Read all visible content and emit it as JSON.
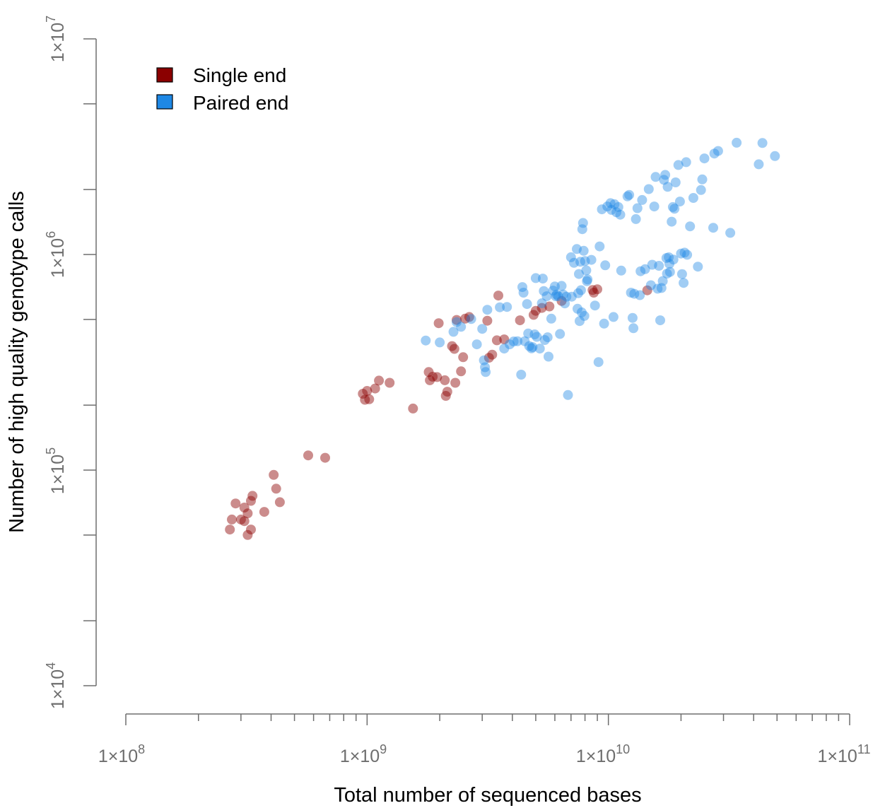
{
  "colors": {
    "single_end": "#8b0000",
    "paired_end": "#1e88e5",
    "axis": "#6e6e6e"
  },
  "chart_data": {
    "type": "scatter",
    "title": "",
    "xlabel": "Total number of sequenced bases",
    "ylabel": "Number of high quality genotype calls",
    "xscale": "log",
    "yscale": "log",
    "xlim": [
      100000000,
      100000000000
    ],
    "ylim": [
      10000,
      10000000
    ],
    "x_tick_labels": [
      {
        "base": "1×10",
        "exp": "8"
      },
      {
        "base": "1×10",
        "exp": "9"
      },
      {
        "base": "1×10",
        "exp": "10"
      },
      {
        "base": "1×10",
        "exp": "11"
      }
    ],
    "y_tick_labels": [
      {
        "base": "1×10",
        "exp": "4"
      },
      {
        "base": "1×10",
        "exp": "5"
      },
      {
        "base": "1×10",
        "exp": "6"
      },
      {
        "base": "1×10",
        "exp": "7"
      }
    ],
    "grid": false,
    "legend_position": "top-left",
    "legend": [
      "Single end",
      "Paired end"
    ],
    "series": [
      {
        "name": "Single end",
        "points": [
          [
            270000000.0,
            53000
          ],
          [
            275000000.0,
            59000
          ],
          [
            285000000.0,
            70000
          ],
          [
            300000000.0,
            59000
          ],
          [
            310000000.0,
            67000
          ],
          [
            310000000.0,
            58000
          ],
          [
            320000000.0,
            63000
          ],
          [
            320000000.0,
            50000
          ],
          [
            330000000.0,
            53000
          ],
          [
            330000000.0,
            72000
          ],
          [
            335000000.0,
            76000
          ],
          [
            375000000.0,
            64000
          ],
          [
            410000000.0,
            95000
          ],
          [
            420000000.0,
            82000
          ],
          [
            435000000.0,
            71000
          ],
          [
            570000000.0,
            117000
          ],
          [
            670000000.0,
            114000
          ],
          [
            960000000.0,
            226000
          ],
          [
            980000000.0,
            212000
          ],
          [
            1000000000.0,
            233000
          ],
          [
            1020000000.0,
            213000
          ],
          [
            1080000000.0,
            239000
          ],
          [
            1120000000.0,
            260000
          ],
          [
            1240000000.0,
            254000
          ],
          [
            1550000000.0,
            193000
          ],
          [
            1800000000.0,
            285000
          ],
          [
            1820000000.0,
            261000
          ],
          [
            1870000000.0,
            271000
          ],
          [
            1950000000.0,
            270000
          ],
          [
            1980000000.0,
            480000
          ],
          [
            2100000000.0,
            261000
          ],
          [
            2120000000.0,
            221000
          ],
          [
            2150000000.0,
            231000
          ],
          [
            2250000000.0,
            376000
          ],
          [
            2300000000.0,
            365000
          ],
          [
            2320000000.0,
            254000
          ],
          [
            2350000000.0,
            497000
          ],
          [
            2450000000.0,
            287000
          ],
          [
            2500000000.0,
            334000
          ],
          [
            2550000000.0,
            504000
          ],
          [
            2650000000.0,
            513000
          ],
          [
            3150000000.0,
            493000
          ],
          [
            3200000000.0,
            332000
          ],
          [
            3300000000.0,
            343000
          ],
          [
            3450000000.0,
            400000
          ],
          [
            3500000000.0,
            645000
          ],
          [
            3700000000.0,
            404000
          ],
          [
            4300000000.0,
            495000
          ],
          [
            4900000000.0,
            525000
          ],
          [
            5000000000.0,
            548000
          ],
          [
            5300000000.0,
            565000
          ],
          [
            5700000000.0,
            574000
          ],
          [
            6400000000.0,
            609000
          ],
          [
            8600000000.0,
            684000
          ],
          [
            8700000000.0,
            665000
          ],
          [
            9000000000.0,
            690000
          ],
          [
            14500000000.0,
            682000
          ]
        ]
      },
      {
        "name": "Paired end",
        "points": [
          [
            1750000000.0,
            399000
          ],
          [
            2000000000.0,
            391000
          ],
          [
            2280000000.0,
            438000
          ],
          [
            2350000000.0,
            486000
          ],
          [
            2450000000.0,
            462000
          ],
          [
            2700000000.0,
            502000
          ],
          [
            2850000000.0,
            383000
          ],
          [
            3000000000.0,
            452000
          ],
          [
            3050000000.0,
            323000
          ],
          [
            3080000000.0,
            300000
          ],
          [
            3100000000.0,
            285000
          ],
          [
            3150000000.0,
            554000
          ],
          [
            3550000000.0,
            569000
          ],
          [
            3700000000.0,
            366000
          ],
          [
            3800000000.0,
            571000
          ],
          [
            3900000000.0,
            383000
          ],
          [
            4050000000.0,
            395000
          ],
          [
            4200000000.0,
            396000
          ],
          [
            4350000000.0,
            277000
          ],
          [
            4400000000.0,
            706000
          ],
          [
            4450000000.0,
            665000
          ],
          [
            4500000000.0,
            396000
          ],
          [
            4600000000.0,
            589000
          ],
          [
            4650000000.0,
            430000
          ],
          [
            4700000000.0,
            376000
          ],
          [
            4800000000.0,
            367000
          ],
          [
            4850000000.0,
            372000
          ],
          [
            4950000000.0,
            426000
          ],
          [
            5000000000.0,
            777000
          ],
          [
            5050000000.0,
            415000
          ],
          [
            5200000000.0,
            366000
          ],
          [
            5300000000.0,
            594000
          ],
          [
            5350000000.0,
            773000
          ],
          [
            5400000000.0,
            677000
          ],
          [
            5450000000.0,
            401000
          ],
          [
            5550000000.0,
            640000
          ],
          [
            5600000000.0,
            413000
          ],
          [
            5650000000.0,
            336000
          ],
          [
            5800000000.0,
            504000
          ],
          [
            5900000000.0,
            680000
          ],
          [
            6000000000.0,
            711000
          ],
          [
            6050000000.0,
            640000
          ],
          [
            6100000000.0,
            652000
          ],
          [
            6200000000.0,
            640000
          ],
          [
            6300000000.0,
            428000
          ],
          [
            6400000000.0,
            715000
          ],
          [
            6500000000.0,
            652000
          ],
          [
            6600000000.0,
            593000
          ],
          [
            6700000000.0,
            637000
          ],
          [
            6800000000.0,
            223000
          ],
          [
            7000000000.0,
            971000
          ],
          [
            7050000000.0,
            637000
          ],
          [
            7200000000.0,
            915000
          ],
          [
            7400000000.0,
            1060000
          ],
          [
            7450000000.0,
            560000
          ],
          [
            7500000000.0,
            661000
          ],
          [
            7550000000.0,
            812000
          ],
          [
            7600000000.0,
            491000
          ],
          [
            7650000000.0,
            925000
          ],
          [
            7700000000.0,
            683000
          ],
          [
            7750000000.0,
            539000
          ],
          [
            7800000000.0,
            1310000
          ],
          [
            7850000000.0,
            1400000
          ],
          [
            7900000000.0,
            1040000
          ],
          [
            7950000000.0,
            519000
          ],
          [
            8000000000.0,
            932000
          ],
          [
            8100000000.0,
            844000
          ],
          [
            8150000000.0,
            752000
          ],
          [
            8200000000.0,
            766000
          ],
          [
            8500000000.0,
            944000
          ],
          [
            8800000000.0,
            580000
          ],
          [
            9100000000.0,
            317000
          ],
          [
            9200000000.0,
            1090000
          ],
          [
            9400000000.0,
            1620000
          ],
          [
            9600000000.0,
            478000
          ],
          [
            9700000000.0,
            891000
          ],
          [
            9900000000.0,
            1670000
          ],
          [
            10200000000.0,
            1730000
          ],
          [
            10300000000.0,
            1610000
          ],
          [
            10500000000.0,
            513000
          ],
          [
            10600000000.0,
            1710000
          ],
          [
            10800000000.0,
            1570000
          ],
          [
            11000000000.0,
            1660000
          ],
          [
            11200000000.0,
            1530000
          ],
          [
            11300000000.0,
            842000
          ],
          [
            12000000000.0,
            1860000
          ],
          [
            12200000000.0,
            1890000
          ],
          [
            12400000000.0,
            665000
          ],
          [
            12600000000.0,
            508000
          ],
          [
            12700000000.0,
            455000
          ],
          [
            12800000000.0,
            657000
          ],
          [
            13000000000.0,
            1460000
          ],
          [
            13200000000.0,
            1640000
          ],
          [
            13500000000.0,
            648000
          ],
          [
            13600000000.0,
            836000
          ],
          [
            13800000000.0,
            1790000
          ],
          [
            14200000000.0,
            855000
          ],
          [
            14700000000.0,
            2010000
          ],
          [
            15000000000.0,
            720000
          ],
          [
            15200000000.0,
            896000
          ],
          [
            15500000000.0,
            1670000
          ],
          [
            15700000000.0,
            2290000
          ],
          [
            16000000000.0,
            694000
          ],
          [
            16200000000.0,
            886000
          ],
          [
            16400000000.0,
            495000
          ],
          [
            16600000000.0,
            699000
          ],
          [
            16800000000.0,
            753000
          ],
          [
            17000000000.0,
            2220000
          ],
          [
            17200000000.0,
            2340000
          ],
          [
            17400000000.0,
            963000
          ],
          [
            17500000000.0,
            815000
          ],
          [
            17600000000.0,
            2060000
          ],
          [
            17800000000.0,
            970000
          ],
          [
            17900000000.0,
            905000
          ],
          [
            18000000000.0,
            830000
          ],
          [
            18300000000.0,
            1420000
          ],
          [
            18500000000.0,
            1660000
          ],
          [
            18600000000.0,
            947000
          ],
          [
            18800000000.0,
            1630000
          ],
          [
            19000000000.0,
            2160000
          ],
          [
            19500000000.0,
            2600000
          ],
          [
            19800000000.0,
            1760000
          ],
          [
            20000000000.0,
            1010000
          ],
          [
            20200000000.0,
            811000
          ],
          [
            20500000000.0,
            738000
          ],
          [
            20700000000.0,
            1020000
          ],
          [
            21000000000.0,
            2680000
          ],
          [
            21200000000.0,
            997000
          ],
          [
            21800000000.0,
            1350000
          ],
          [
            22500000000.0,
            1830000
          ],
          [
            23500000000.0,
            878000
          ],
          [
            24200000000.0,
            1990000
          ],
          [
            24500000000.0,
            2230000
          ],
          [
            25000000000.0,
            2790000
          ],
          [
            27200000000.0,
            1330000
          ],
          [
            27500000000.0,
            2940000
          ],
          [
            28500000000.0,
            3020000
          ],
          [
            32000000000.0,
            1260000
          ],
          [
            34000000000.0,
            3300000
          ],
          [
            42000000000.0,
            2620000
          ],
          [
            43500000000.0,
            3290000
          ],
          [
            49000000000.0,
            2860000
          ]
        ]
      }
    ]
  }
}
